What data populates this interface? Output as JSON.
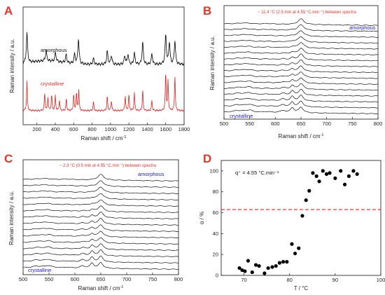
{
  "chart_data": [
    {
      "panel": "A",
      "type": "line",
      "xlabel": "Raman shift",
      "xunit": "cm-1",
      "ylabel": "Raman intensity",
      "yunit": "a.u.",
      "xlim": [
        50,
        1800
      ],
      "xticks": [
        200,
        400,
        600,
        800,
        1000,
        1200,
        1400,
        1600,
        1800
      ],
      "series": [
        {
          "name": "amorphous",
          "color": "#000000"
        },
        {
          "name": "crystalline",
          "color": "#e3221b"
        }
      ],
      "peaks_amorphous": [
        [
          92,
          1.0
        ],
        [
          300,
          0.35
        ],
        [
          402,
          0.3
        ],
        [
          518,
          0.28
        ],
        [
          610,
          0.32
        ],
        [
          652,
          0.85
        ],
        [
          815,
          0.2
        ],
        [
          965,
          0.45
        ],
        [
          1010,
          0.3
        ],
        [
          1155,
          0.3
        ],
        [
          1190,
          0.35
        ],
        [
          1260,
          0.38
        ],
        [
          1350,
          0.75
        ],
        [
          1450,
          0.35
        ],
        [
          1600,
          1.0
        ],
        [
          1640,
          0.75
        ],
        [
          1700,
          0.8
        ]
      ],
      "peaks_crystalline": [
        [
          92,
          1.0
        ],
        [
          285,
          0.6
        ],
        [
          320,
          0.45
        ],
        [
          360,
          0.55
        ],
        [
          400,
          0.5
        ],
        [
          445,
          0.35
        ],
        [
          520,
          0.4
        ],
        [
          600,
          0.55
        ],
        [
          630,
          0.6
        ],
        [
          655,
          0.7
        ],
        [
          815,
          0.3
        ],
        [
          965,
          0.5
        ],
        [
          1010,
          0.35
        ],
        [
          1160,
          0.5
        ],
        [
          1200,
          0.55
        ],
        [
          1260,
          0.6
        ],
        [
          1350,
          0.7
        ],
        [
          1450,
          0.35
        ],
        [
          1600,
          1.3
        ],
        [
          1625,
          1.0
        ],
        [
          1700,
          1.2
        ]
      ]
    },
    {
      "panel": "B",
      "type": "line",
      "annotation": "~ 11.4 °C (2.5 min at 4.55 °C.min⁻¹) between spectra",
      "label_top": "amorphous",
      "label_bottom": "crystalline",
      "xlabel": "Raman shift",
      "xunit": "cm-1",
      "ylabel": "Raman intensity",
      "yunit": "a.u.",
      "xlim": [
        500,
        800
      ],
      "xticks": [
        500,
        550,
        600,
        650,
        700,
        750,
        800
      ],
      "n_spectra": 16
    },
    {
      "panel": "C",
      "type": "line",
      "annotation": "~ 2.3 °C (0.5 min at 4.55 °C.min⁻¹) between spectra",
      "label_top": "amorphous",
      "label_bottom": "crystalline",
      "xlabel": "Raman shift",
      "xunit": "cm-1",
      "ylabel": "Raman intensity",
      "yunit": "a.u.",
      "xlim": [
        500,
        800
      ],
      "xticks": [
        500,
        550,
        600,
        650,
        700,
        750,
        800
      ],
      "n_spectra": 15
    },
    {
      "panel": "D",
      "type": "scatter",
      "annotation": "q⁺ = 4.55 °C.min⁻¹",
      "xlabel": "T",
      "xunit": "°C",
      "ylabel": "α",
      "yunit": "%",
      "xlim": [
        65,
        100
      ],
      "ylim": [
        0,
        110
      ],
      "xticks": [
        70,
        80,
        90,
        100
      ],
      "yticks": [
        0,
        20,
        40,
        60,
        80,
        100
      ],
      "reference_line": {
        "y": 63,
        "color": "#e3221b",
        "style": "dashed"
      },
      "points": [
        [
          69.0,
          7
        ],
        [
          69.6,
          5
        ],
        [
          70.2,
          4
        ],
        [
          70.9,
          14
        ],
        [
          71.8,
          3
        ],
        [
          72.6,
          10
        ],
        [
          73.3,
          9
        ],
        [
          74.5,
          2
        ],
        [
          75.3,
          7
        ],
        [
          76.2,
          8
        ],
        [
          77.0,
          9
        ],
        [
          77.8,
          12
        ],
        [
          78.6,
          13
        ],
        [
          79.4,
          13
        ],
        [
          80.5,
          30
        ],
        [
          81.2,
          21
        ],
        [
          82.0,
          26
        ],
        [
          82.8,
          57
        ],
        [
          83.6,
          72
        ],
        [
          84.3,
          81
        ],
        [
          85.1,
          98
        ],
        [
          85.9,
          95
        ],
        [
          86.5,
          90
        ],
        [
          87.3,
          100
        ],
        [
          88.1,
          97
        ],
        [
          88.8,
          98
        ],
        [
          90.0,
          93
        ],
        [
          91.2,
          100
        ],
        [
          92.1,
          87
        ],
        [
          93.0,
          95
        ],
        [
          94.0,
          100
        ],
        [
          94.8,
          97
        ]
      ]
    }
  ],
  "panels": {
    "A": {
      "letter": "A",
      "x_title": "Raman shift  /  cm",
      "x_sup": "-1",
      "y_title": "Raman intensity  /  a.u.",
      "label_top": "amorphous",
      "label_bottom": "crystalline",
      "xticks": [
        "200",
        "400",
        "600",
        "800",
        "1000",
        "1200",
        "1400",
        "1600",
        "1800"
      ]
    },
    "B": {
      "letter": "B",
      "x_title": "Raman shift  /  cm",
      "x_sup": "-1",
      "y_title": "Raman intensity  /  a.u.",
      "annotation": "~ 11.4 °C (2.5 min at 4.55 °C.min⁻¹) between spectra",
      "label_top": "amorphous",
      "label_bottom": "crystalline",
      "xticks": [
        "500",
        "550",
        "600",
        "650",
        "700",
        "750",
        "800"
      ]
    },
    "C": {
      "letter": "C",
      "x_title": "Raman shift  /  cm",
      "x_sup": "-1",
      "y_title": "Raman intensity  /  a.u.",
      "annotation": "~ 2.3 °C (0.5 min at 4.55 °C.min⁻¹) between spectra",
      "label_top": "amorphous",
      "label_bottom": "crystalline",
      "xticks": [
        "500",
        "550",
        "600",
        "650",
        "700",
        "750",
        "800"
      ]
    },
    "D": {
      "letter": "D",
      "x_title": "T   /   °C",
      "y_title": "α   /   %",
      "annotation": "q⁺ = 4.55 °C.min⁻¹",
      "xticks": [
        "70",
        "80",
        "90",
        "100"
      ],
      "yticks": [
        "0",
        "20",
        "40",
        "60",
        "80",
        "100"
      ]
    }
  }
}
